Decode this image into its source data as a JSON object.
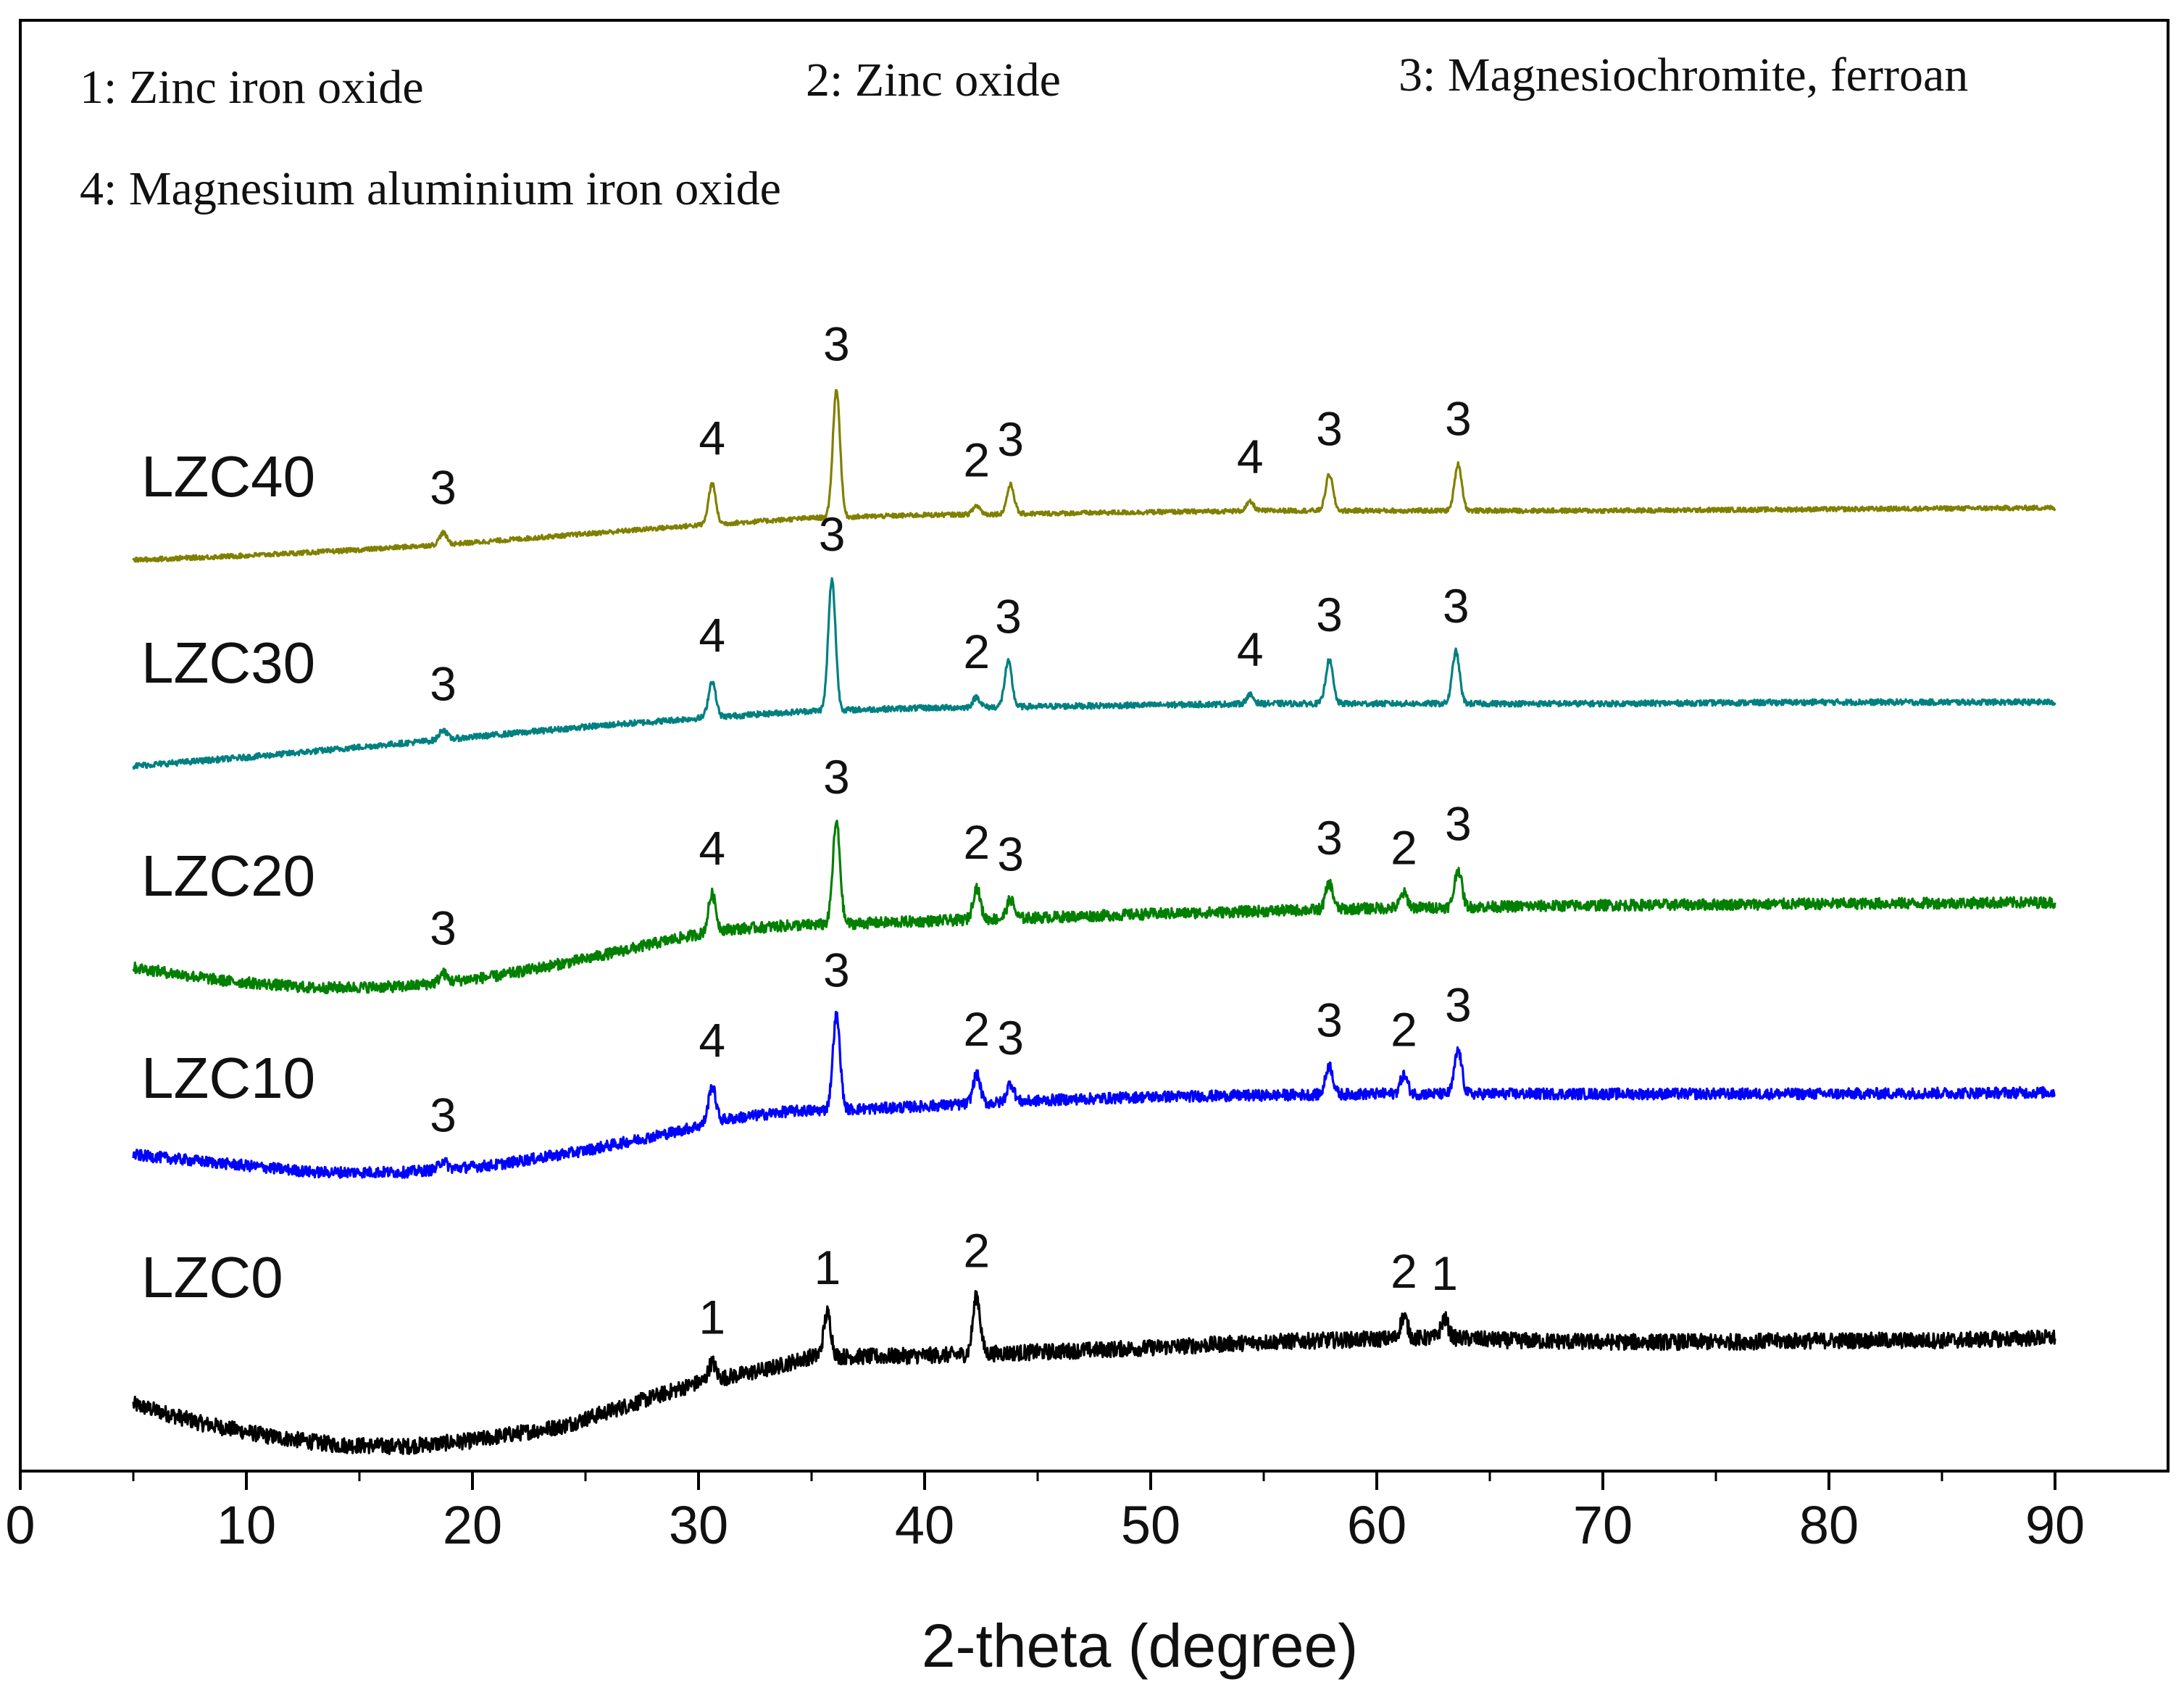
{
  "chart_data": {
    "type": "line",
    "title": "",
    "xlabel": "2-theta (degree)",
    "ylabel": "",
    "xlim": [
      0,
      95
    ],
    "xticks": [
      0,
      10,
      20,
      30,
      40,
      50,
      60,
      70,
      80,
      90
    ],
    "yticks_shown": false,
    "grid": false,
    "legend": {
      "placement": "top-left",
      "entries": [
        "1: Zinc iron oxide",
        "2: Zinc oxide",
        "3: Magnesiochromite, ferroan",
        "4: Magnesium aluminium iron oxide"
      ]
    },
    "series": [
      {
        "name": "LZC0",
        "color": "#000000",
        "points": [
          [
            5,
            4.6
          ],
          [
            8,
            3.3
          ],
          [
            11,
            2.4
          ],
          [
            14,
            1.8
          ],
          [
            17,
            1.7
          ],
          [
            20,
            2.1
          ],
          [
            24,
            3.1
          ],
          [
            27,
            4.6
          ],
          [
            30,
            6.1
          ],
          [
            33,
            7.0
          ],
          [
            35,
            7.9
          ],
          [
            38,
            7.9
          ],
          [
            41,
            8.0
          ],
          [
            45,
            8.2
          ],
          [
            50,
            8.5
          ],
          [
            55,
            8.9
          ],
          [
            60,
            9.1
          ],
          [
            63,
            9.2
          ],
          [
            66,
            9.0
          ],
          [
            70,
            8.9
          ],
          [
            75,
            8.9
          ],
          [
            80,
            9.0
          ],
          [
            85,
            9.0
          ],
          [
            90,
            9.2
          ]
        ],
        "peaks": [
          {
            "x": 30.6,
            "h": 1.2,
            "label": "1"
          },
          {
            "x": 35.7,
            "h": 3.0,
            "label": "1"
          },
          {
            "x": 42.3,
            "h": 4.0,
            "label": "2"
          },
          {
            "x": 61.2,
            "h": 1.5,
            "label": "2"
          },
          {
            "x": 63.0,
            "h": 1.3,
            "label": "1"
          }
        ]
      },
      {
        "name": "LZC10",
        "color": "#0000ff",
        "points": [
          [
            5,
            21.8
          ],
          [
            9,
            21.2
          ],
          [
            13,
            20.6
          ],
          [
            17,
            20.6
          ],
          [
            21,
            21.1
          ],
          [
            25,
            22.1
          ],
          [
            29,
            23.4
          ],
          [
            31,
            24.2
          ],
          [
            34,
            24.8
          ],
          [
            38,
            25.0
          ],
          [
            42,
            25.3
          ],
          [
            46,
            25.6
          ],
          [
            50,
            25.8
          ],
          [
            55,
            25.9
          ],
          [
            60,
            26.0
          ],
          [
            65,
            26.0
          ],
          [
            70,
            26.0
          ],
          [
            80,
            26.0
          ],
          [
            90,
            26.1
          ]
        ],
        "peaks": [
          {
            "x": 18.7,
            "h": 0.6,
            "label": "3"
          },
          {
            "x": 30.6,
            "h": 2.5,
            "label": "4"
          },
          {
            "x": 36.1,
            "h": 6.5,
            "label": "3"
          },
          {
            "x": 42.3,
            "h": 2.0,
            "label": "2"
          },
          {
            "x": 43.8,
            "h": 1.3,
            "label": "3"
          },
          {
            "x": 57.9,
            "h": 2.0,
            "label": "3"
          },
          {
            "x": 61.2,
            "h": 1.3,
            "label": "2"
          },
          {
            "x": 63.6,
            "h": 3.0,
            "label": "3"
          }
        ]
      },
      {
        "name": "LZC20",
        "color": "#008000",
        "points": [
          [
            5,
            34.7
          ],
          [
            9,
            33.8
          ],
          [
            13,
            33.3
          ],
          [
            17,
            33.4
          ],
          [
            21,
            34.1
          ],
          [
            25,
            35.3
          ],
          [
            29,
            36.7
          ],
          [
            31,
            37.3
          ],
          [
            34,
            37.6
          ],
          [
            38,
            37.8
          ],
          [
            42,
            38.0
          ],
          [
            46,
            38.2
          ],
          [
            50,
            38.4
          ],
          [
            55,
            38.6
          ],
          [
            60,
            38.8
          ],
          [
            65,
            38.9
          ],
          [
            70,
            39.0
          ],
          [
            80,
            39.1
          ],
          [
            90,
            39.2
          ]
        ],
        "peaks": [
          {
            "x": 18.7,
            "h": 0.6,
            "label": "3"
          },
          {
            "x": 30.6,
            "h": 2.6,
            "label": "4"
          },
          {
            "x": 36.1,
            "h": 7.0,
            "label": "3"
          },
          {
            "x": 42.3,
            "h": 2.2,
            "label": "2"
          },
          {
            "x": 43.8,
            "h": 1.3,
            "label": "3"
          },
          {
            "x": 57.9,
            "h": 1.8,
            "label": "3"
          },
          {
            "x": 61.2,
            "h": 1.0,
            "label": "2"
          },
          {
            "x": 63.6,
            "h": 2.6,
            "label": "3"
          }
        ]
      },
      {
        "name": "LZC30",
        "color": "#008080",
        "points": [
          [
            5,
            48.6
          ],
          [
            10,
            49.2
          ],
          [
            15,
            49.9
          ],
          [
            20,
            50.6
          ],
          [
            25,
            51.3
          ],
          [
            30,
            51.9
          ],
          [
            35,
            52.4
          ],
          [
            40,
            52.6
          ],
          [
            45,
            52.7
          ],
          [
            50,
            52.8
          ],
          [
            55,
            52.9
          ],
          [
            60,
            52.9
          ],
          [
            70,
            52.9
          ],
          [
            80,
            53.0
          ],
          [
            90,
            53.0
          ]
        ],
        "peaks": [
          {
            "x": 18.7,
            "h": 0.7,
            "label": "3"
          },
          {
            "x": 30.6,
            "h": 2.5,
            "label": "4"
          },
          {
            "x": 35.9,
            "h": 9.0,
            "label": "3"
          },
          {
            "x": 42.3,
            "h": 0.7,
            "label": "2"
          },
          {
            "x": 43.7,
            "h": 3.1,
            "label": "3"
          },
          {
            "x": 54.4,
            "h": 0.6,
            "label": "4"
          },
          {
            "x": 57.9,
            "h": 3.0,
            "label": "3"
          },
          {
            "x": 63.5,
            "h": 3.6,
            "label": "3"
          }
        ]
      },
      {
        "name": "LZC40",
        "color": "#808000",
        "points": [
          [
            5,
            62.8
          ],
          [
            10,
            63.1
          ],
          [
            15,
            63.5
          ],
          [
            20,
            64.0
          ],
          [
            25,
            64.6
          ],
          [
            30,
            65.2
          ],
          [
            35,
            65.7
          ],
          [
            40,
            65.9
          ],
          [
            45,
            66.0
          ],
          [
            50,
            66.1
          ],
          [
            55,
            66.2
          ],
          [
            60,
            66.2
          ],
          [
            70,
            66.2
          ],
          [
            80,
            66.3
          ],
          [
            90,
            66.4
          ]
        ],
        "peaks": [
          {
            "x": 18.7,
            "h": 0.8,
            "label": "3"
          },
          {
            "x": 30.6,
            "h": 2.8,
            "label": "4"
          },
          {
            "x": 36.1,
            "h": 8.8,
            "label": "3"
          },
          {
            "x": 42.3,
            "h": 0.6,
            "label": "2"
          },
          {
            "x": 43.8,
            "h": 2.0,
            "label": "3"
          },
          {
            "x": 54.4,
            "h": 0.6,
            "label": "4"
          },
          {
            "x": 57.9,
            "h": 2.5,
            "label": "3"
          },
          {
            "x": 63.6,
            "h": 3.2,
            "label": "3"
          }
        ]
      }
    ]
  }
}
